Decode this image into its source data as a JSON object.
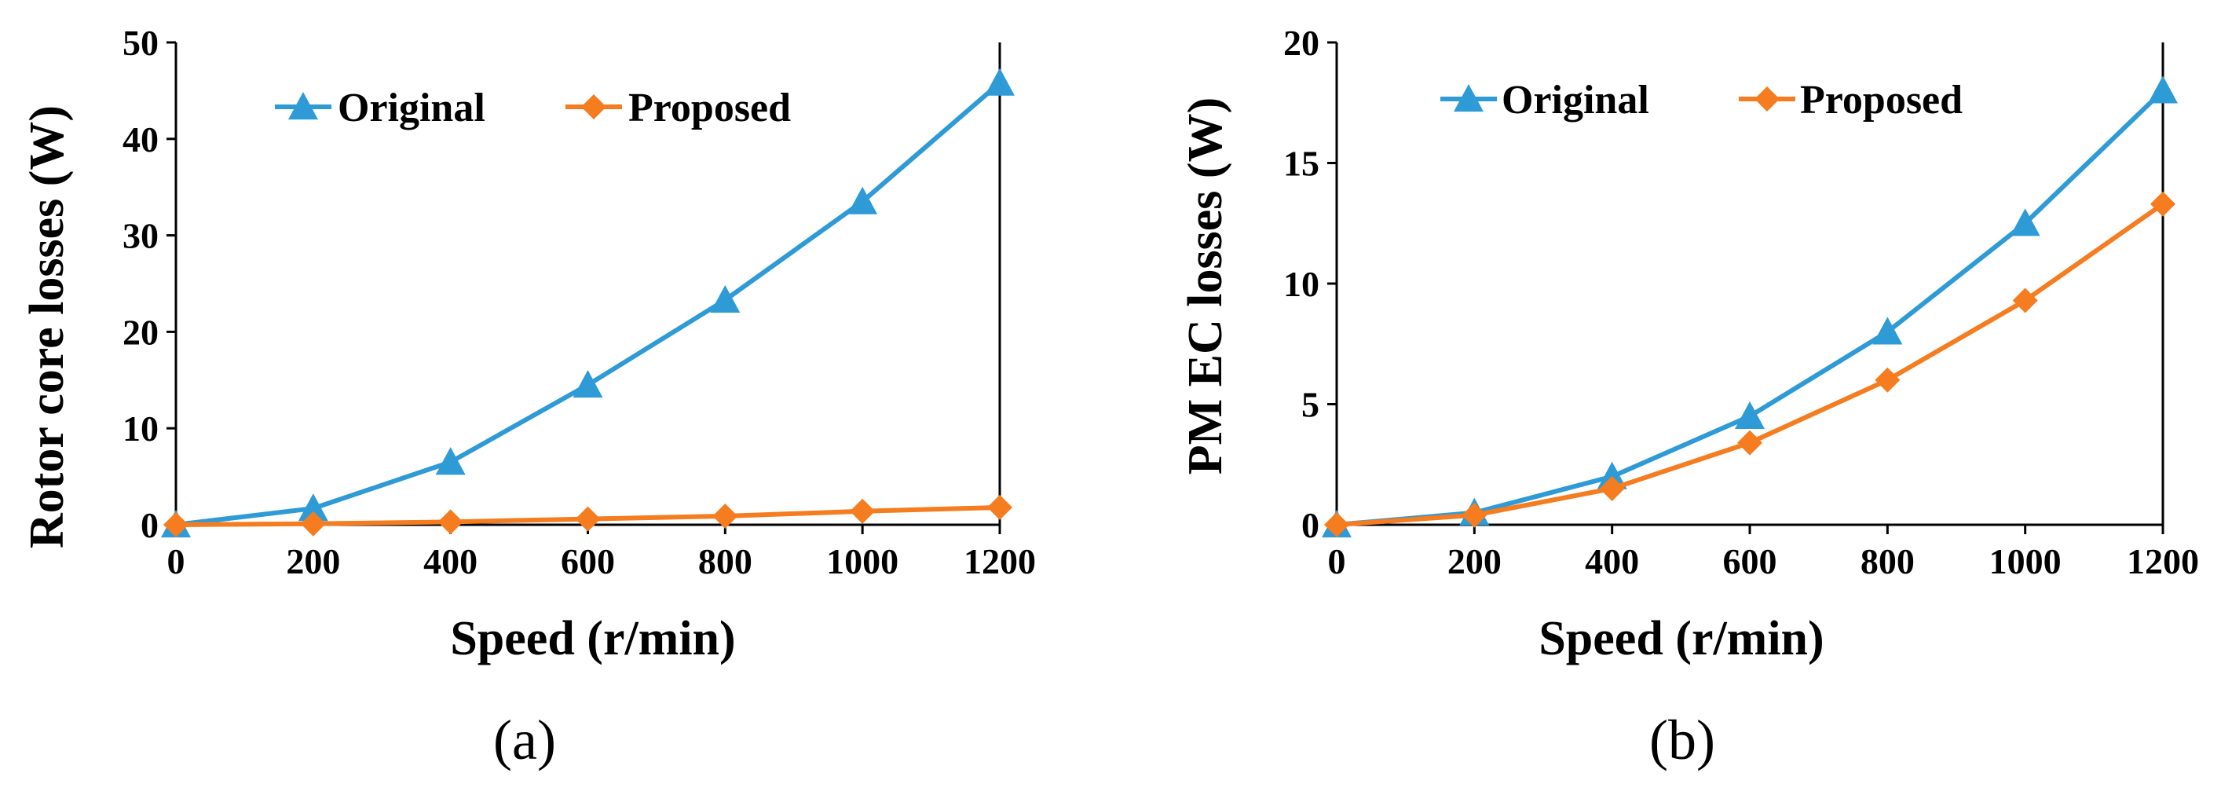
{
  "colors": {
    "original": "#2E9BD6",
    "proposed": "#F57C1F",
    "axis": "#000000"
  },
  "chart_data": [
    {
      "type": "line",
      "panel_label": "(a)",
      "xlabel": "Speed (r/min)",
      "ylabel": "Rotor core losses (W)",
      "xlim": [
        0,
        1200
      ],
      "ylim": [
        0,
        50
      ],
      "xticks": [
        0,
        200,
        400,
        600,
        800,
        1000,
        1200
      ],
      "yticks": [
        0,
        10,
        20,
        30,
        40,
        50
      ],
      "legend_position": "top",
      "x": [
        0,
        200,
        400,
        600,
        800,
        1000,
        1200
      ],
      "series": [
        {
          "name": "Original",
          "marker": "triangle",
          "color": "#2E9BD6",
          "values": [
            0,
            1.7,
            6.5,
            14.5,
            23.3,
            33.5,
            45.8
          ]
        },
        {
          "name": "Proposed",
          "marker": "diamond",
          "color": "#F57C1F",
          "values": [
            0,
            0.1,
            0.3,
            0.6,
            0.9,
            1.4,
            1.8
          ]
        }
      ]
    },
    {
      "type": "line",
      "panel_label": "(b)",
      "xlabel": "Speed (r/min)",
      "ylabel": "PM EC losses (W)",
      "xlim": [
        0,
        1200
      ],
      "ylim": [
        0,
        20
      ],
      "xticks": [
        0,
        200,
        400,
        600,
        800,
        1000,
        1200
      ],
      "yticks": [
        0,
        5,
        10,
        15,
        20
      ],
      "legend_position": "top",
      "x": [
        0,
        200,
        400,
        600,
        800,
        1000,
        1200
      ],
      "series": [
        {
          "name": "Original",
          "marker": "triangle",
          "color": "#2E9BD6",
          "values": [
            0,
            0.5,
            2.0,
            4.5,
            8.0,
            12.5,
            18.0
          ]
        },
        {
          "name": "Proposed",
          "marker": "diamond",
          "color": "#F57C1F",
          "values": [
            0,
            0.4,
            1.5,
            3.4,
            6.0,
            9.3,
            13.3
          ]
        }
      ]
    }
  ]
}
